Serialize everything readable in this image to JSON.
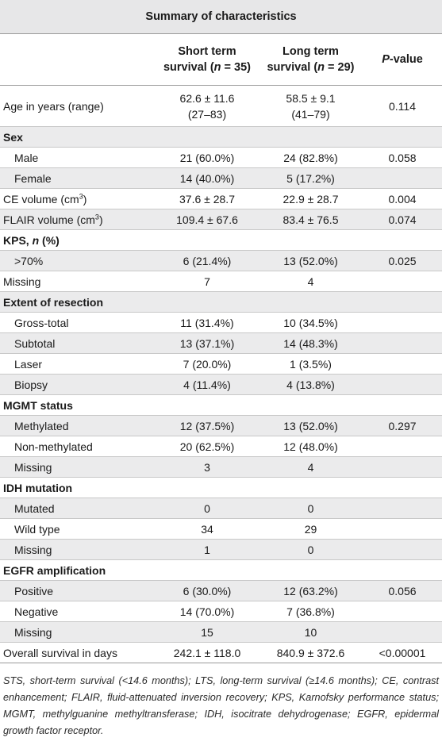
{
  "table": {
    "title": "Summary of characteristics",
    "headers": {
      "short": {
        "line1": "Short term",
        "line2_pre": "survival (",
        "n_label": "n",
        "line2_post": " = 35)"
      },
      "long": {
        "line1": "Long term",
        "line2_pre": "survival (",
        "n_label": "n",
        "line2_post": " = 29)"
      },
      "pvalue": {
        "p": "P",
        "rest": "-value"
      }
    },
    "rows": [
      {
        "label": "Age in years (range)",
        "short": "62.6 ± 11.6",
        "short2": "(27–83)",
        "long": "58.5 ± 9.1",
        "long2": "(41–79)",
        "p": "0.114"
      },
      {
        "label": "Sex"
      },
      {
        "label": "Male",
        "short": "21 (60.0%)",
        "long": "24 (82.8%)",
        "p": "0.058"
      },
      {
        "label": "Female",
        "short": "14 (40.0%)",
        "long": "5 (17.2%)",
        "p": ""
      },
      {
        "label": "CE volume (cm",
        "sup": "3",
        "label_tail": ")",
        "short": "37.6 ± 28.7",
        "long": "22.9 ± 28.7",
        "p": "0.004"
      },
      {
        "label": "FLAIR volume (cm",
        "sup": "3",
        "label_tail": ")",
        "short": "109.4 ± 67.6",
        "long": "83.4 ± 76.5",
        "p": "0.074"
      },
      {
        "label": "KPS, ",
        "label_it": "n",
        "label_tail": " (%)"
      },
      {
        "label": ">70%",
        "short": "6 (21.4%)",
        "long": "13 (52.0%)",
        "p": "0.025"
      },
      {
        "label": "Missing",
        "short": "7",
        "long": "4",
        "p": ""
      },
      {
        "label": "Extent of resection"
      },
      {
        "label": "Gross-total",
        "short": "11 (31.4%)",
        "long": "10 (34.5%)",
        "p": ""
      },
      {
        "label": "Subtotal",
        "short": "13 (37.1%)",
        "long": "14 (48.3%)",
        "p": ""
      },
      {
        "label": "Laser",
        "short": "7 (20.0%)",
        "long": "1 (3.5%)",
        "p": ""
      },
      {
        "label": "Biopsy",
        "short": "4 (11.4%)",
        "long": "4 (13.8%)",
        "p": ""
      },
      {
        "label": "MGMT status"
      },
      {
        "label": "Methylated",
        "short": "12 (37.5%)",
        "long": "13 (52.0%)",
        "p": "0.297"
      },
      {
        "label": "Non-methylated",
        "short": "20 (62.5%)",
        "long": "12 (48.0%)",
        "p": ""
      },
      {
        "label": "Missing",
        "short": "3",
        "long": "4",
        "p": ""
      },
      {
        "label": "IDH mutation"
      },
      {
        "label": "Mutated",
        "short": "0",
        "long": "0",
        "p": ""
      },
      {
        "label": "Wild type",
        "short": "34",
        "long": "29",
        "p": ""
      },
      {
        "label": "Missing",
        "short": "1",
        "long": "0",
        "p": ""
      },
      {
        "label": "EGFR amplification"
      },
      {
        "label": "Positive",
        "short": "6 (30.0%)",
        "long": "12 (63.2%)",
        "p": "0.056"
      },
      {
        "label": "Negative",
        "short": "14 (70.0%)",
        "long": "7 (36.8%)",
        "p": ""
      },
      {
        "label": "Missing",
        "short": "15",
        "long": "10",
        "p": ""
      },
      {
        "label": "Overall survival in days",
        "short": "242.1 ± 118.0",
        "long": "840.9 ± 372.6",
        "p": "<0.00001"
      }
    ]
  },
  "footnote": "STS, short-term survival (<14.6 months); LTS, long-term survival (≥14.6 months); CE, contrast enhancement; FLAIR, fluid-attenuated inversion recovery; KPS, Karnofsky performance status; MGMT, methylguanine methyltransferase; IDH, isocitrate dehydrogenase; EGFR, epidermal growth factor receptor."
}
